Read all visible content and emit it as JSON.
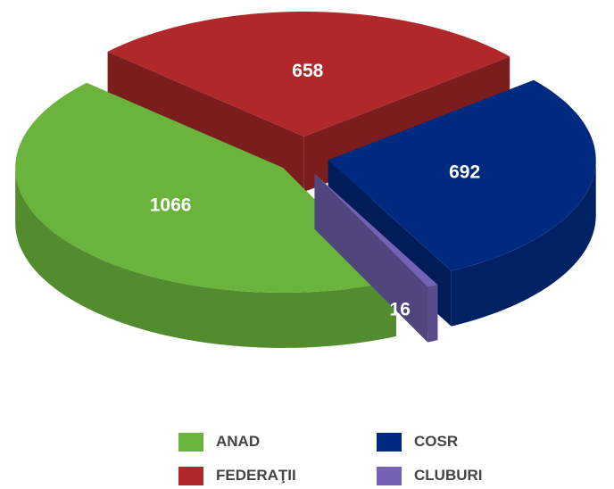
{
  "chart_data": {
    "type": "pie3d",
    "series": [
      {
        "name": "ANAD",
        "color": "#6ab33c",
        "value": 1066
      },
      {
        "name": "FEDERAŢII",
        "color": "#b0282a",
        "value": 658
      },
      {
        "name": "COSR",
        "color": "#002a80",
        "value": 692
      },
      {
        "name": "CLUBURI",
        "color": "#7462b4",
        "value": 16
      }
    ],
    "legend": "bottom"
  }
}
